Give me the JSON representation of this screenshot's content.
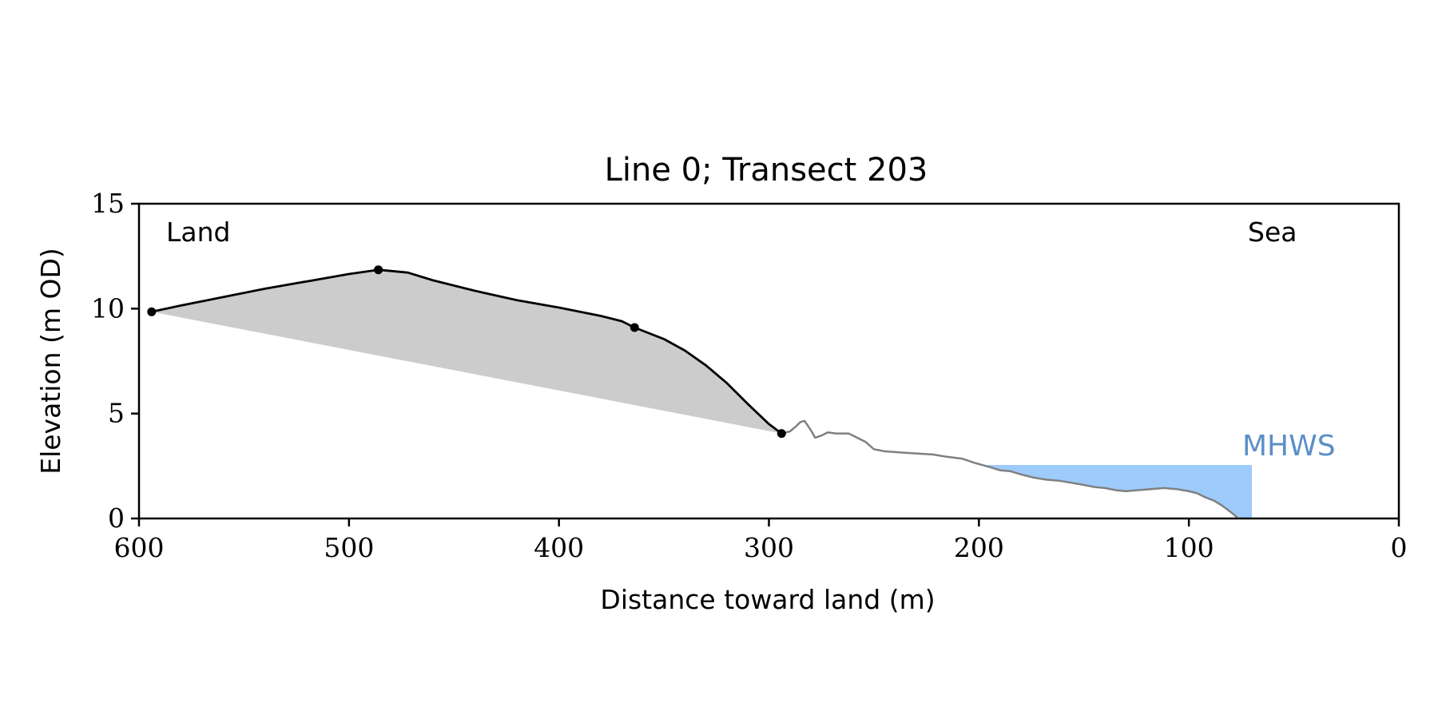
{
  "chart_data": {
    "type": "line",
    "title": "Line 0; Transect 203",
    "xlabel": "Distance toward land (m)",
    "ylabel": "Elevation (m OD)",
    "xlim": [
      600,
      0
    ],
    "ylim": [
      0,
      15
    ],
    "x_ticks": [
      600,
      500,
      400,
      300,
      200,
      100,
      0
    ],
    "y_ticks": [
      0,
      5,
      10,
      15
    ],
    "grid": false,
    "annotations": {
      "land_label": "Land",
      "sea_label": "Sea",
      "mhws_label": "MHWS"
    },
    "colors": {
      "profile": "#000000",
      "ground": "#808080",
      "fill": "#cccccc",
      "water": "#9dcbfc",
      "mhws_text": "#5b8fc7"
    },
    "mhws": {
      "elevation": 2.55,
      "x_range": [
        200,
        70
      ]
    },
    "profile_points": [
      [
        594,
        9.85
      ],
      [
        580,
        10.15
      ],
      [
        560,
        10.55
      ],
      [
        540,
        10.95
      ],
      [
        520,
        11.3
      ],
      [
        500,
        11.65
      ],
      [
        486,
        11.85
      ],
      [
        472,
        11.72
      ],
      [
        460,
        11.35
      ],
      [
        440,
        10.85
      ],
      [
        420,
        10.4
      ],
      [
        400,
        10.05
      ],
      [
        380,
        9.65
      ],
      [
        370,
        9.4
      ],
      [
        364,
        9.1
      ],
      [
        350,
        8.55
      ],
      [
        340,
        8.0
      ],
      [
        330,
        7.3
      ],
      [
        320,
        6.45
      ],
      [
        310,
        5.45
      ],
      [
        300,
        4.5
      ],
      [
        294,
        4.05
      ]
    ],
    "key_points": [
      [
        594,
        9.85
      ],
      [
        486,
        11.85
      ],
      [
        364,
        9.1
      ],
      [
        294,
        4.05
      ]
    ],
    "ground_points": [
      [
        294,
        4.05
      ],
      [
        290,
        4.15
      ],
      [
        287,
        4.4
      ],
      [
        285,
        4.6
      ],
      [
        283,
        4.65
      ],
      [
        280,
        4.2
      ],
      [
        278,
        3.85
      ],
      [
        275,
        3.95
      ],
      [
        272,
        4.1
      ],
      [
        268,
        4.05
      ],
      [
        262,
        4.05
      ],
      [
        258,
        3.85
      ],
      [
        254,
        3.65
      ],
      [
        250,
        3.3
      ],
      [
        245,
        3.2
      ],
      [
        238,
        3.15
      ],
      [
        230,
        3.1
      ],
      [
        222,
        3.05
      ],
      [
        216,
        2.95
      ],
      [
        208,
        2.85
      ],
      [
        202,
        2.65
      ],
      [
        195,
        2.45
      ],
      [
        190,
        2.3
      ],
      [
        185,
        2.25
      ],
      [
        180,
        2.1
      ],
      [
        174,
        1.95
      ],
      [
        168,
        1.85
      ],
      [
        162,
        1.8
      ],
      [
        156,
        1.7
      ],
      [
        150,
        1.6
      ],
      [
        145,
        1.5
      ],
      [
        140,
        1.45
      ],
      [
        135,
        1.35
      ],
      [
        130,
        1.3
      ],
      [
        124,
        1.35
      ],
      [
        118,
        1.4
      ],
      [
        112,
        1.45
      ],
      [
        106,
        1.4
      ],
      [
        100,
        1.3
      ],
      [
        96,
        1.2
      ],
      [
        92,
        1.0
      ],
      [
        88,
        0.85
      ],
      [
        84,
        0.6
      ],
      [
        80,
        0.3
      ],
      [
        77,
        0.05
      ]
    ],
    "water_polygon": [
      [
        200,
        2.55
      ],
      [
        70,
        2.55
      ],
      [
        70,
        0.0
      ],
      [
        77,
        0.05
      ],
      [
        80,
        0.3
      ],
      [
        84,
        0.6
      ],
      [
        88,
        0.85
      ],
      [
        92,
        1.0
      ],
      [
        96,
        1.2
      ],
      [
        100,
        1.3
      ],
      [
        106,
        1.4
      ],
      [
        112,
        1.45
      ],
      [
        118,
        1.4
      ],
      [
        124,
        1.35
      ],
      [
        130,
        1.3
      ],
      [
        135,
        1.35
      ],
      [
        140,
        1.45
      ],
      [
        145,
        1.5
      ],
      [
        150,
        1.6
      ],
      [
        156,
        1.7
      ],
      [
        162,
        1.8
      ],
      [
        168,
        1.85
      ],
      [
        174,
        1.95
      ],
      [
        180,
        2.1
      ],
      [
        185,
        2.25
      ],
      [
        190,
        2.3
      ],
      [
        195,
        2.45
      ],
      [
        200,
        2.55
      ]
    ]
  }
}
